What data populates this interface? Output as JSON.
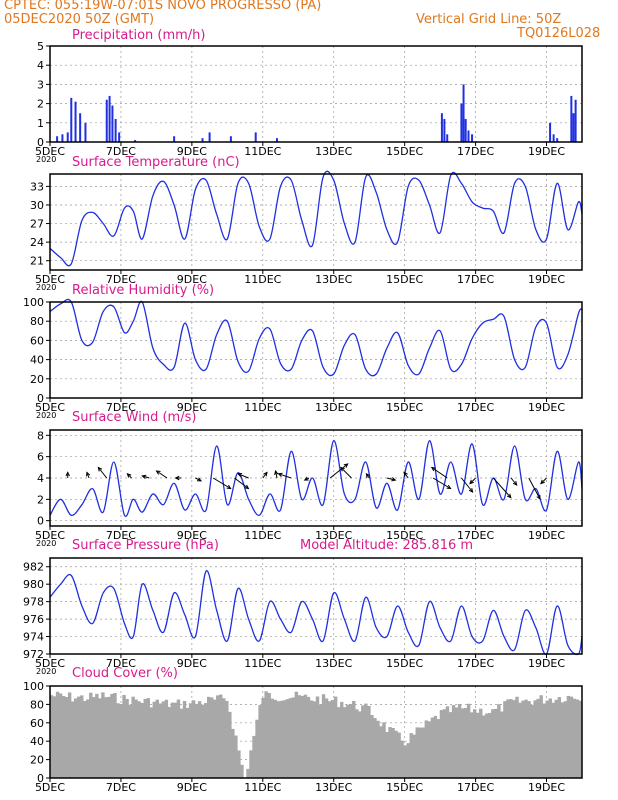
{
  "header": {
    "line1": "CPTEC:   055:19W-07:01S   NOVO PROGRESSO (PA)",
    "line2": "05DEC2020 50Z (GMT)",
    "grid_note": "Vertical Grid Line: 50Z",
    "code": "TQ0126L028",
    "altitude": "Model Altitude: 285.816 m",
    "year_stub": "2020"
  },
  "colors": {
    "header": "#e07820",
    "title": "#d81b8c",
    "line": "#2030e0",
    "cloud": "#a8a8a8",
    "arrow": "#000000"
  },
  "x_ticks": [
    "5DEC",
    "7DEC",
    "9DEC",
    "11DEC",
    "13DEC",
    "15DEC",
    "17DEC",
    "19DEC"
  ],
  "chart_data": [
    {
      "type": "bar",
      "title": "Precipitation (mm/h)",
      "ylim": [
        0,
        5
      ],
      "yticks": [
        "0",
        "1",
        "2",
        "3",
        "4",
        "5"
      ],
      "x_range": [
        5,
        20
      ],
      "x": [
        5.2,
        5.35,
        5.5,
        5.6,
        5.72,
        5.85,
        6.0,
        6.6,
        6.68,
        6.76,
        6.85,
        6.95,
        7.4,
        8.5,
        9.3,
        9.5,
        10.1,
        10.8,
        11.4,
        16.05,
        16.12,
        16.2,
        16.6,
        16.66,
        16.72,
        16.8,
        16.9,
        19.1,
        19.2,
        19.3,
        19.7,
        19.76,
        19.82
      ],
      "values": [
        0.3,
        0.4,
        0.5,
        2.3,
        2.1,
        1.5,
        1.0,
        2.2,
        2.4,
        1.9,
        1.2,
        0.5,
        0.1,
        0.3,
        0.2,
        0.5,
        0.3,
        0.5,
        0.2,
        1.5,
        1.2,
        0.4,
        2.0,
        3.0,
        1.2,
        0.6,
        0.4,
        1.0,
        0.4,
        0.2,
        2.4,
        1.5,
        2.2
      ]
    },
    {
      "type": "line",
      "title": "Surface Temperature (nC)",
      "ylim": [
        19.5,
        35
      ],
      "yticks": [
        "21",
        "24",
        "27",
        "30",
        "33"
      ],
      "x_range": [
        5,
        20
      ],
      "x": [
        5.0,
        5.3,
        5.6,
        5.9,
        6.2,
        6.5,
        6.8,
        7.1,
        7.35,
        7.6,
        7.9,
        8.2,
        8.5,
        8.8,
        9.1,
        9.4,
        9.7,
        10.0,
        10.3,
        10.6,
        10.9,
        11.2,
        11.5,
        11.8,
        12.1,
        12.4,
        12.7,
        13.0,
        13.3,
        13.6,
        13.9,
        14.2,
        14.5,
        14.8,
        15.1,
        15.4,
        15.7,
        16.0,
        16.3,
        16.6,
        16.9,
        17.2,
        17.5,
        17.8,
        18.1,
        18.4,
        18.7,
        19.0,
        19.3,
        19.6,
        19.9,
        20.0
      ],
      "values": [
        23,
        21.5,
        20.5,
        27.5,
        28.8,
        27.0,
        25.0,
        29.5,
        29.0,
        24.5,
        31.5,
        33.8,
        30.0,
        24.5,
        32.5,
        34.0,
        28.5,
        24.5,
        33.5,
        33.5,
        26.5,
        24.5,
        33.0,
        34.0,
        27.5,
        23.5,
        34.5,
        34.0,
        27.0,
        24.0,
        34.5,
        32.0,
        26.0,
        24.0,
        33.0,
        34.0,
        30.0,
        25.5,
        34.8,
        33.5,
        30.5,
        29.5,
        29.0,
        25.5,
        33.5,
        33.0,
        26.0,
        24.5,
        33.5,
        26.0,
        30.5,
        28.5
      ]
    },
    {
      "type": "line",
      "title": "Relative Humidity (%)",
      "ylim": [
        0,
        100
      ],
      "yticks": [
        "0",
        "20",
        "40",
        "60",
        "80",
        "100"
      ],
      "x_range": [
        5,
        20
      ],
      "x": [
        5.0,
        5.3,
        5.6,
        5.9,
        6.2,
        6.5,
        6.8,
        7.1,
        7.35,
        7.6,
        7.9,
        8.2,
        8.5,
        8.8,
        9.1,
        9.4,
        9.7,
        10.0,
        10.3,
        10.6,
        10.9,
        11.2,
        11.5,
        11.8,
        12.1,
        12.4,
        12.7,
        13.0,
        13.3,
        13.6,
        13.9,
        14.2,
        14.5,
        14.8,
        15.1,
        15.4,
        15.7,
        16.0,
        16.3,
        16.6,
        16.9,
        17.2,
        17.5,
        17.8,
        18.1,
        18.4,
        18.7,
        19.0,
        19.3,
        19.6,
        19.9,
        20.0
      ],
      "values": [
        90,
        98,
        100,
        60,
        58,
        90,
        95,
        68,
        80,
        100,
        52,
        35,
        32,
        78,
        40,
        30,
        66,
        80,
        38,
        28,
        62,
        72,
        36,
        30,
        60,
        70,
        32,
        25,
        55,
        66,
        30,
        25,
        52,
        68,
        34,
        25,
        52,
        70,
        30,
        35,
        62,
        78,
        82,
        85,
        40,
        32,
        74,
        78,
        32,
        45,
        88,
        92
      ]
    },
    {
      "type": "line",
      "title": "Surface Wind (m/s)",
      "ylim": [
        -0.5,
        8.5
      ],
      "yticks": [
        "0",
        "2",
        "4",
        "6",
        "8"
      ],
      "x_range": [
        5,
        20
      ],
      "x": [
        5.0,
        5.3,
        5.6,
        5.9,
        6.2,
        6.5,
        6.8,
        7.1,
        7.35,
        7.6,
        7.9,
        8.2,
        8.5,
        8.8,
        9.1,
        9.4,
        9.7,
        10.0,
        10.3,
        10.6,
        10.9,
        11.2,
        11.5,
        11.8,
        12.1,
        12.4,
        12.7,
        13.0,
        13.3,
        13.6,
        13.9,
        14.2,
        14.5,
        14.8,
        15.1,
        15.4,
        15.7,
        16.0,
        16.3,
        16.6,
        16.9,
        17.2,
        17.5,
        17.8,
        18.1,
        18.4,
        18.7,
        19.0,
        19.3,
        19.6,
        19.9,
        20.0
      ],
      "values": [
        0.5,
        2.0,
        0.5,
        1.5,
        3.0,
        0.8,
        5.5,
        0.5,
        2.0,
        0.8,
        2.5,
        1.5,
        3.5,
        1.0,
        2.5,
        1.0,
        7.0,
        1.5,
        4.5,
        2.0,
        0.5,
        2.5,
        1.0,
        6.5,
        2.0,
        4.0,
        1.5,
        7.5,
        2.5,
        2.0,
        5.5,
        1.2,
        3.5,
        1.0,
        5.5,
        2.0,
        7.5,
        2.5,
        5.5,
        2.5,
        7.2,
        1.5,
        4.0,
        2.0,
        7.0,
        2.0,
        3.0,
        1.0,
        6.5,
        2.0,
        5.5,
        3.0
      ],
      "wind_vectors": {
        "x": [
          5.5,
          6.1,
          6.6,
          7.3,
          7.8,
          8.3,
          8.7,
          9.1,
          9.6,
          10.2,
          10.6,
          11.0,
          11.4,
          11.8,
          12.3,
          12.9,
          13.5,
          14.0,
          14.5,
          15.1,
          15.8,
          16.2,
          16.6,
          17.0,
          17.5,
          18.0,
          18.5,
          19.0
        ],
        "u": [
          0.0,
          -0.3,
          -1.2,
          -0.6,
          -1.0,
          -1.5,
          -0.8,
          0.8,
          2.5,
          2.0,
          -1.5,
          0.6,
          -0.2,
          -1.8,
          -0.6,
          2.5,
          -1.5,
          -0.4,
          1.2,
          -0.6,
          2.5,
          -2.2,
          1.6,
          -0.8,
          2.5,
          0.8,
          1.6,
          -0.8
        ],
        "v": [
          0.8,
          0.8,
          1.5,
          0.6,
          0.3,
          1.0,
          0.0,
          -0.4,
          -1.5,
          -1.5,
          0.6,
          0.8,
          1.0,
          0.6,
          -0.3,
          2.0,
          1.5,
          0.6,
          -0.3,
          0.8,
          -1.5,
          1.5,
          -2.0,
          -0.8,
          -2.8,
          -1.0,
          -3.0,
          -0.8
        ]
      }
    },
    {
      "type": "line",
      "title": "Surface Pressure (hPa)",
      "ylim": [
        972,
        983
      ],
      "yticks": [
        "972",
        "974",
        "976",
        "978",
        "980",
        "982"
      ],
      "x_range": [
        5,
        20
      ],
      "x": [
        5.0,
        5.3,
        5.6,
        5.9,
        6.2,
        6.5,
        6.8,
        7.1,
        7.35,
        7.6,
        7.9,
        8.2,
        8.5,
        8.8,
        9.1,
        9.4,
        9.7,
        10.0,
        10.3,
        10.6,
        10.9,
        11.2,
        11.5,
        11.8,
        12.1,
        12.4,
        12.7,
        13.0,
        13.3,
        13.6,
        13.9,
        14.2,
        14.5,
        14.8,
        15.1,
        15.4,
        15.7,
        16.0,
        16.3,
        16.6,
        16.9,
        17.2,
        17.5,
        17.8,
        18.1,
        18.4,
        18.7,
        19.0,
        19.3,
        19.6,
        19.9,
        20.0
      ],
      "values": [
        978.5,
        980,
        981,
        977.5,
        975.5,
        979,
        979.5,
        975.5,
        974,
        980,
        977,
        974.5,
        979,
        976.5,
        974,
        981.5,
        977,
        973.5,
        979.5,
        976,
        973.5,
        978,
        976,
        974.5,
        978,
        976,
        973.5,
        979,
        976,
        973.5,
        978.5,
        975,
        974,
        977.5,
        974.5,
        973,
        978,
        975,
        973.5,
        977.5,
        974,
        973.5,
        977,
        974,
        972.5,
        977,
        975,
        972,
        977.5,
        973,
        972,
        974
      ]
    },
    {
      "type": "bar",
      "title": "Cloud Cover (%)",
      "ylim": [
        0,
        100
      ],
      "yticks": [
        "0",
        "20",
        "40",
        "60",
        "80",
        "100"
      ],
      "x_range": [
        5,
        20
      ],
      "x": [
        5.0,
        5.5,
        6.0,
        6.5,
        7.0,
        7.5,
        8.0,
        8.5,
        9.0,
        9.5,
        10.0,
        10.5,
        11.0,
        11.5,
        12.0,
        12.5,
        13.0,
        13.5,
        14.0,
        14.5,
        15.0,
        15.5,
        16.0,
        16.5,
        17.0,
        17.5,
        18.0,
        18.5,
        19.0,
        19.5,
        20.0
      ],
      "values": [
        96,
        94,
        93,
        95,
        92,
        90,
        88,
        86,
        87,
        90,
        92,
        5,
        96,
        95,
        94,
        92,
        90,
        86,
        80,
        60,
        45,
        60,
        75,
        82,
        80,
        78,
        88,
        90,
        92,
        94,
        95
      ]
    }
  ]
}
